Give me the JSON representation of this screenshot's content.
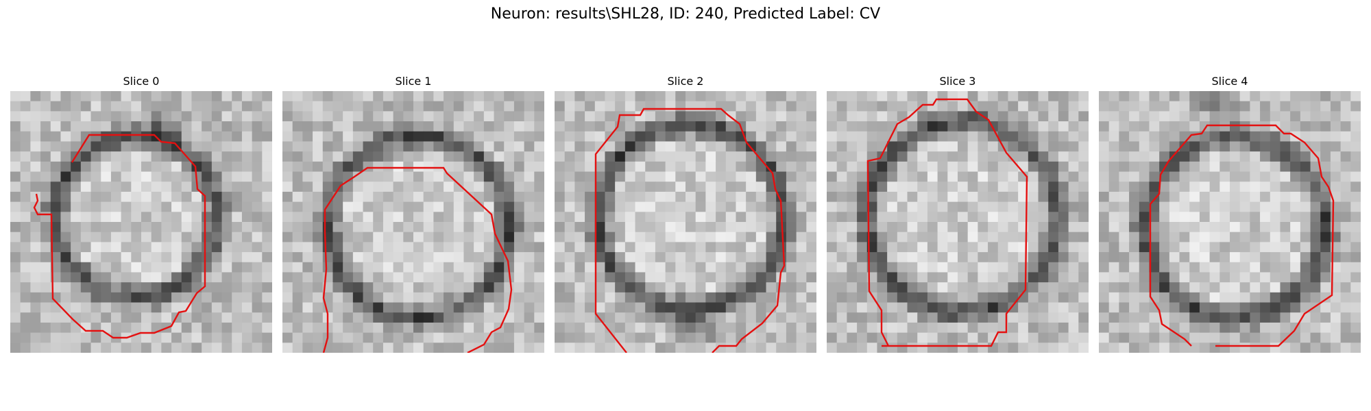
{
  "title": "Neuron: results\\SHL28, ID: 240, Predicted Label: CV",
  "contour_color": "#e41010",
  "panels": [
    {
      "label": "Slice 0"
    },
    {
      "label": "Slice 1"
    },
    {
      "label": "Slice 2"
    },
    {
      "label": "Slice 3"
    },
    {
      "label": "Slice 4"
    }
  ]
}
